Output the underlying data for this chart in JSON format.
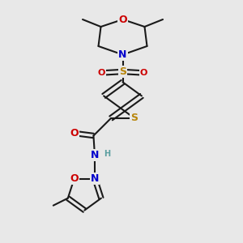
{
  "bg_color": "#e8e8e8",
  "bond_color": "#1a1a1a",
  "bond_width": 1.5,
  "atom_colors": {
    "S_thio": "#b8860b",
    "S_sulfonyl": "#b8860b",
    "O": "#cc0000",
    "N": "#0000cc",
    "H": "#5a9ea0",
    "C": "#1a1a1a"
  },
  "font_size": 9
}
